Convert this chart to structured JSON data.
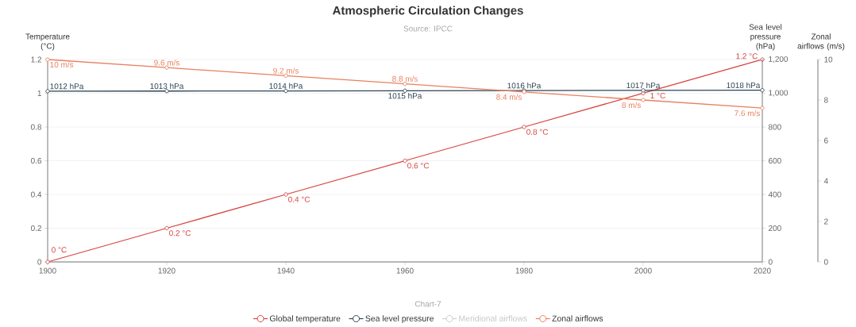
{
  "chart_data": {
    "type": "line",
    "title": "Atmospheric Circulation Changes",
    "subtitle": "Source: IPCC",
    "annotations": [
      "Chart-7"
    ],
    "ylabel": "Temperature (°C)",
    "y2label": "Sea level pressure (hPa)",
    "y3label": "Zonal airflows (m/s)",
    "x": [
      1900,
      1920,
      1940,
      1960,
      1980,
      2000,
      2020
    ],
    "xlim": [
      1900,
      2020
    ],
    "xticks": [
      1900,
      1920,
      1940,
      1960,
      1980,
      2000,
      2020
    ],
    "ylim": [
      0,
      1.2
    ],
    "yticks": [
      0,
      0.2,
      0.4,
      0.6,
      0.8,
      1,
      1.2
    ],
    "y2lim": [
      0,
      1200
    ],
    "y2ticks": [
      0,
      200,
      400,
      600,
      800,
      {
        "value": 1000,
        "label": "1,000"
      },
      {
        "value": 1200,
        "label": "1,200"
      }
    ],
    "y3lim": [
      0,
      10
    ],
    "y3ticks": [
      0,
      2,
      4,
      6,
      8,
      10
    ],
    "grid": "y",
    "legend": "bottom",
    "marker": "circle",
    "line_style": "solid",
    "series": [
      {
        "name": "Global temperature",
        "color": "#d64541",
        "values": [
          0,
          0.2,
          0.4,
          0.6,
          0.8,
          1,
          1.2
        ],
        "value_labels": [
          "0 °C",
          "0.2 °C",
          "0.4 °C",
          "0.6 °C",
          "0.8 °C",
          "1 °C",
          "1.2 °C"
        ]
      },
      {
        "name": "Sea level pressure",
        "color": "#2f4554",
        "axis": "y2",
        "values": [
          1012,
          1013,
          1014,
          1015,
          1016,
          1017,
          1018
        ],
        "value_labels": [
          "1012 hPa",
          "1013 hPa",
          "1014 hPa",
          "1015 hPa",
          "1016 hPa",
          "1017 hPa",
          "1018 hPa"
        ]
      },
      {
        "name": "Meridional airflows",
        "color": "#cccccc",
        "axis": "y3",
        "values": [
          null,
          null,
          null,
          null,
          null,
          null,
          null
        ]
      },
      {
        "name": "Zonal airflows",
        "color": "#e8805f",
        "axis": "y3",
        "values": [
          10,
          9.6,
          9.2,
          8.8,
          8.4,
          8,
          7.6
        ],
        "value_labels": [
          "10 m/s",
          "9.6 m/s",
          "9.2 m/s",
          "8.8 m/s",
          "8.4 m/s",
          "8 m/s",
          "7.6 m/s"
        ]
      }
    ]
  }
}
